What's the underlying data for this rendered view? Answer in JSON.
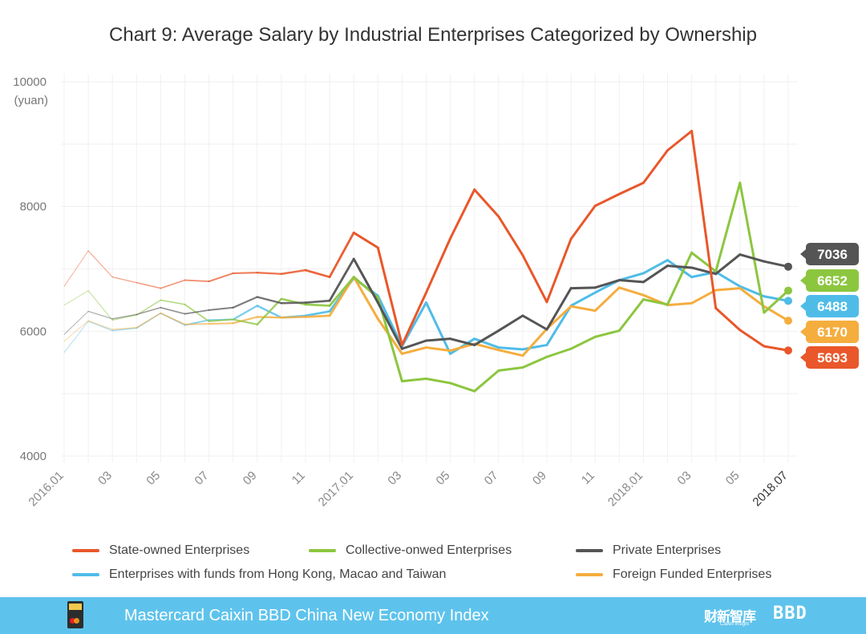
{
  "chart_data": {
    "type": "line",
    "title": "Chart 9: Average Salary by Industrial Enterprises Categorized by Ownership",
    "ylabel_line1": "10000",
    "ylabel_line2": "(yuan)",
    "ylim": [
      4000,
      10000
    ],
    "y_ticks": [
      4000,
      6000,
      8000
    ],
    "x_tick_labels": [
      "2016.01",
      "03",
      "05",
      "07",
      "09",
      "11",
      "2017.01",
      "03",
      "05",
      "07",
      "09",
      "11",
      "2018.01",
      "03",
      "05",
      "2018.07"
    ],
    "x": [
      "2016.01",
      "2016.02",
      "2016.03",
      "2016.04",
      "2016.05",
      "2016.06",
      "2016.07",
      "2016.08",
      "2016.09",
      "2016.10",
      "2016.11",
      "2016.12",
      "2017.01",
      "2017.02",
      "2017.03",
      "2017.04",
      "2017.05",
      "2017.06",
      "2017.07",
      "2017.08",
      "2017.09",
      "2017.10",
      "2017.11",
      "2017.12",
      "2018.01",
      "2018.02",
      "2018.03",
      "2018.04",
      "2018.05",
      "2018.06",
      "2018.07"
    ],
    "grid": true,
    "legend_placement": "bottom",
    "series": [
      {
        "name": "State-owned Enterprises",
        "color": "#e9572a",
        "end_label": "5693",
        "values": [
          6720,
          7290,
          6870,
          6780,
          6690,
          6820,
          6800,
          6930,
          6940,
          6920,
          6980,
          6870,
          7580,
          7340,
          5780,
          6620,
          7490,
          8270,
          7840,
          7220,
          6470,
          7480,
          8010,
          8200,
          8380,
          8900,
          9210,
          6370,
          6020,
          5760,
          5693
        ]
      },
      {
        "name": "Collective-onwed Enterprises",
        "color": "#8cc63f",
        "end_label": "6652",
        "values": [
          6420,
          6650,
          6180,
          6260,
          6500,
          6430,
          6160,
          6190,
          6110,
          6520,
          6430,
          6410,
          6870,
          6540,
          5200,
          5240,
          5170,
          5040,
          5370,
          5420,
          5590,
          5720,
          5910,
          6010,
          6510,
          6430,
          7260,
          6960,
          8380,
          6300,
          6652
        ]
      },
      {
        "name": "Private Enterprises",
        "color": "#555555",
        "end_label": "7036",
        "values": [
          5950,
          6320,
          6200,
          6270,
          6380,
          6280,
          6340,
          6380,
          6550,
          6450,
          6460,
          6490,
          7160,
          6460,
          5720,
          5850,
          5880,
          5780,
          6010,
          6250,
          6030,
          6690,
          6700,
          6820,
          6790,
          7050,
          7020,
          6920,
          7230,
          7120,
          7036
        ]
      },
      {
        "name": "Enterprises with funds from Hong Kong, Macao and Taiwan",
        "color": "#4fbce8",
        "end_label": "6488",
        "values": [
          5660,
          6160,
          6010,
          6050,
          6290,
          6100,
          6180,
          6190,
          6410,
          6220,
          6250,
          6320,
          6850,
          6570,
          5760,
          6460,
          5640,
          5880,
          5740,
          5710,
          5780,
          6410,
          6620,
          6820,
          6930,
          7140,
          6870,
          6950,
          6720,
          6560,
          6488
        ]
      },
      {
        "name": "Foreign Funded Enterprises",
        "color": "#f5ad3e",
        "end_label": "6170",
        "values": [
          5840,
          6170,
          6030,
          6060,
          6290,
          6110,
          6120,
          6130,
          6230,
          6220,
          6230,
          6250,
          6870,
          6200,
          5640,
          5740,
          5690,
          5800,
          5700,
          5610,
          6040,
          6400,
          6330,
          6700,
          6580,
          6420,
          6450,
          6660,
          6690,
          6400,
          6170
        ]
      }
    ]
  },
  "footer": {
    "index_name": "Mastercard Caixin BBD China New Economy Index",
    "logo_caixin": "财新智库",
    "logo_caixin_sub": "Caixin Insight",
    "logo_bbd": "BBD"
  }
}
